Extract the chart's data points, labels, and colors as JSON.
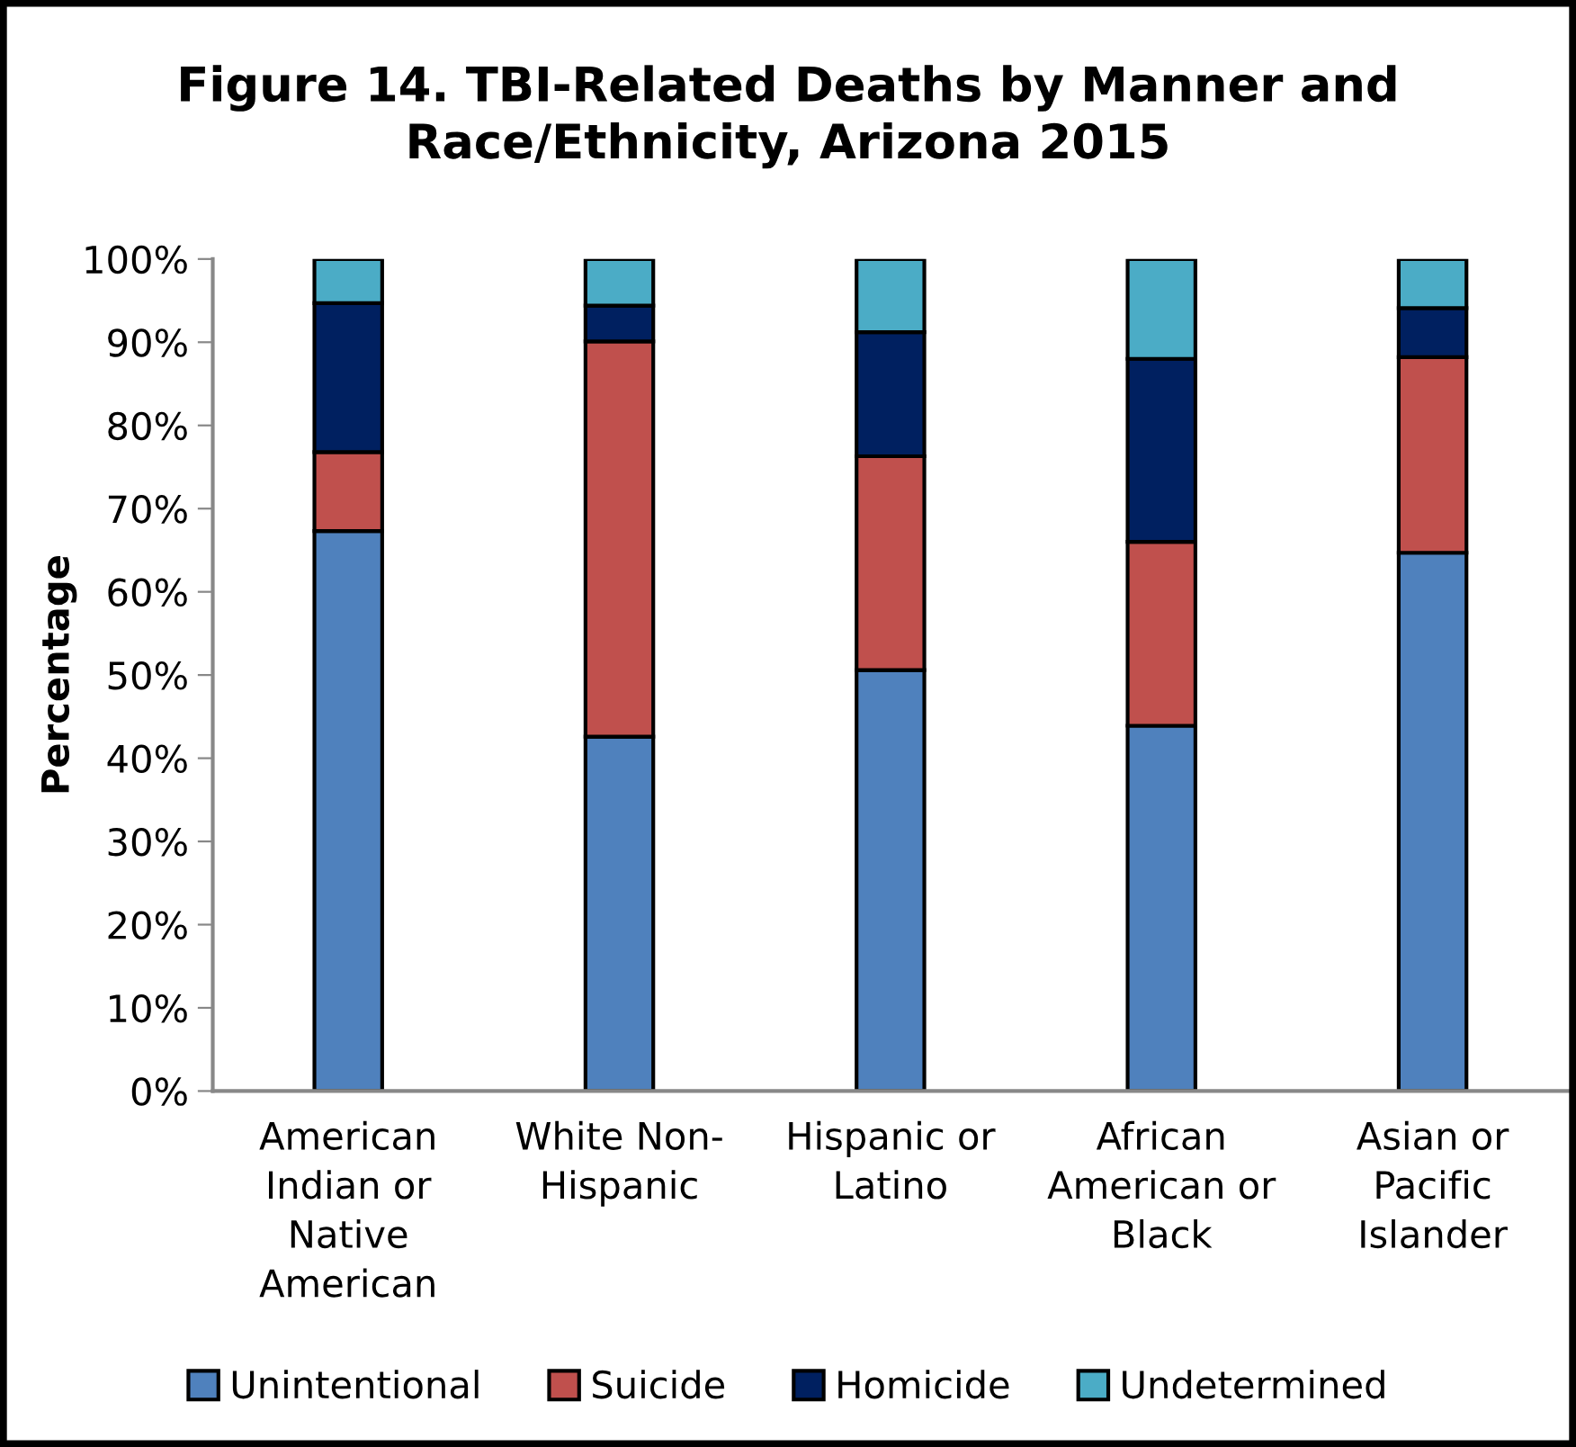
{
  "chart_data": {
    "type": "bar",
    "title": "Figure 14. TBI-Related Deaths by Manner and\nRace/Ethnicity, Arizona 2015",
    "ylabel": "Percentage",
    "categories": [
      "American\nIndian or\nNative\nAmerican",
      "White Non-\nHispanic",
      "Hispanic or\nLatino",
      "African\nAmerican or\nBlack",
      "Asian or\nPacific\nIslander"
    ],
    "stacked": true,
    "series": [
      {
        "name": "Unintentional",
        "color": "#4f81bd",
        "values": [
          67.3,
          42.6,
          50.6,
          43.9,
          64.7
        ]
      },
      {
        "name": "Suicide",
        "color": "#c0504d",
        "values": [
          9.5,
          47.5,
          25.7,
          22.1,
          23.5
        ]
      },
      {
        "name": "Homicide",
        "color": "#002060",
        "values": [
          17.9,
          4.3,
          14.9,
          22.0,
          5.9
        ]
      },
      {
        "name": "Undetermined",
        "color": "#4bacc6",
        "values": [
          5.3,
          5.6,
          8.8,
          12.0,
          5.9
        ]
      }
    ],
    "ylim": [
      0,
      100
    ],
    "yticks": [
      {
        "value": 0,
        "label": "0%"
      },
      {
        "value": 10,
        "label": "10%"
      },
      {
        "value": 20,
        "label": "20%"
      },
      {
        "value": 30,
        "label": "30%"
      },
      {
        "value": 40,
        "label": "40%"
      },
      {
        "value": 50,
        "label": "50%"
      },
      {
        "value": 60,
        "label": "60%"
      },
      {
        "value": 70,
        "label": "70%"
      },
      {
        "value": 80,
        "label": "80%"
      },
      {
        "value": 90,
        "label": "90%"
      },
      {
        "value": 100,
        "label": "100%"
      }
    ],
    "grid": false,
    "legend": "bottom"
  }
}
